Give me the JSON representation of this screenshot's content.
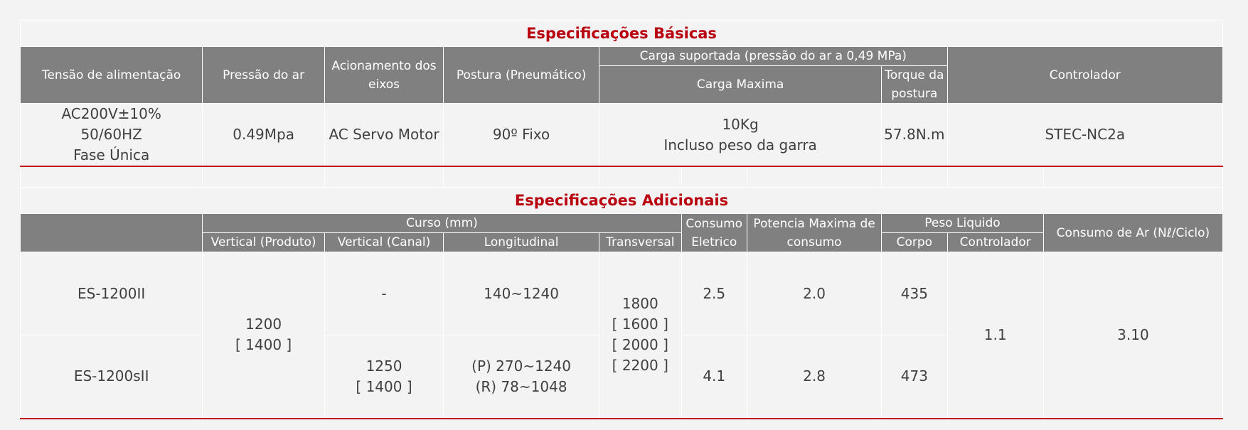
{
  "basic": {
    "title": "Especificações Básicas",
    "headers": {
      "tensao": "Tensão de alimentação",
      "pressao": "Pressão do ar",
      "acionamento": "Acionamento dos eixos",
      "postura": "Postura (Pneumático)",
      "carga_grupo": "Carga suportada (pressão do ar a 0,49 MPa)",
      "carga_max": "Carga Maxima",
      "torque": "Torque da postura",
      "controlador": "Controlador"
    },
    "row": {
      "tensao": "AC200V±10%\n50/60HZ\nFase Única",
      "pressao": "0.49Mpa",
      "acionamento": "AC Servo Motor",
      "postura": "90º Fixo",
      "carga": "10Kg\nIncluso peso da garra",
      "torque": "57.8N.m",
      "controlador": "STEC-NC2a"
    }
  },
  "additional": {
    "title": "Especificações Adicionais",
    "headers": {
      "curso": "Curso (mm)",
      "vertical_produto": "Vertical (Produto)",
      "vertical_canal": "Vertical (Canal)",
      "longitudinal": "Longitudinal",
      "transversal": "Transversal",
      "consumo_eletrico": "Consumo Eletrico",
      "potencia": "Potencia Maxima de consumo",
      "peso": "Peso Liquido",
      "corpo": "Corpo",
      "peso_controlador": "Controlador",
      "consumo_ar": "Consumo de Ar (Nℓ/Ciclo)"
    },
    "rows": [
      {
        "model": "ES-1200II",
        "vertical_canal": "-",
        "longitudinal": "140~1240",
        "consumo": "2.5",
        "potencia": "2.0",
        "corpo": "435"
      },
      {
        "model": "ES-1200sII",
        "vertical_canal": "1250\n[ 1400 ]",
        "longitudinal": "(P) 270~1240\n(R) 78~1048",
        "consumo": "4.1",
        "potencia": "2.8",
        "corpo": "473"
      }
    ],
    "shared": {
      "vertical_produto": "1200\n[ 1400 ]",
      "transversal": "1800\n[ 1600 ]\n[ 2000 ]\n[ 2200 ]",
      "peso_controlador": "1.1",
      "consumo_ar": "3.10"
    }
  }
}
